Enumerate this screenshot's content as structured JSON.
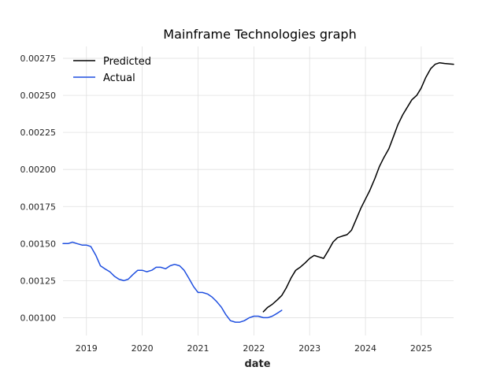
{
  "chart_data": {
    "type": "line",
    "title": "Mainframe Technologies graph",
    "xlabel": "date",
    "ylabel": "",
    "xlim": [
      2018.58,
      2025.58
    ],
    "ylim": [
      0.00088,
      0.00283
    ],
    "x_ticks": [
      2019,
      2020,
      2021,
      2022,
      2023,
      2024,
      2025
    ],
    "x_tick_labels": [
      "2019",
      "2020",
      "2021",
      "2022",
      "2023",
      "2024",
      "2025"
    ],
    "y_ticks": [
      0.001,
      0.00125,
      0.0015,
      0.00175,
      0.002,
      0.00225,
      0.0025,
      0.00275
    ],
    "y_tick_labels": [
      "0.00100",
      "0.00125",
      "0.00150",
      "0.00175",
      "0.00200",
      "0.00225",
      "0.00250",
      "0.00275"
    ],
    "grid": true,
    "legend_position": "top-left",
    "series": [
      {
        "name": "Predicted",
        "color": "#000000",
        "points": [
          [
            2022.17,
            0.00104
          ],
          [
            2022.25,
            0.00107
          ],
          [
            2022.33,
            0.00109
          ],
          [
            2022.42,
            0.00112
          ],
          [
            2022.5,
            0.00115
          ],
          [
            2022.58,
            0.0012
          ],
          [
            2022.67,
            0.00127
          ],
          [
            2022.75,
            0.00132
          ],
          [
            2022.83,
            0.00134
          ],
          [
            2022.92,
            0.00137
          ],
          [
            2023.0,
            0.0014
          ],
          [
            2023.08,
            0.00142
          ],
          [
            2023.17,
            0.00141
          ],
          [
            2023.25,
            0.0014
          ],
          [
            2023.33,
            0.00145
          ],
          [
            2023.42,
            0.00151
          ],
          [
            2023.5,
            0.00154
          ],
          [
            2023.58,
            0.00155
          ],
          [
            2023.67,
            0.00156
          ],
          [
            2023.75,
            0.00159
          ],
          [
            2023.83,
            0.00166
          ],
          [
            2023.92,
            0.00174
          ],
          [
            2024.0,
            0.0018
          ],
          [
            2024.08,
            0.00186
          ],
          [
            2024.17,
            0.00194
          ],
          [
            2024.25,
            0.00202
          ],
          [
            2024.33,
            0.00208
          ],
          [
            2024.42,
            0.00214
          ],
          [
            2024.5,
            0.00222
          ],
          [
            2024.58,
            0.0023
          ],
          [
            2024.67,
            0.00237
          ],
          [
            2024.75,
            0.00242
          ],
          [
            2024.83,
            0.00247
          ],
          [
            2024.92,
            0.0025
          ],
          [
            2025.0,
            0.00255
          ],
          [
            2025.08,
            0.00262
          ],
          [
            2025.17,
            0.00268
          ],
          [
            2025.25,
            0.00271
          ],
          [
            2025.33,
            0.00272
          ],
          [
            2025.42,
            0.002715
          ],
          [
            2025.58,
            0.00271
          ]
        ]
      },
      {
        "name": "Actual",
        "color": "#1f4fe0",
        "points": [
          [
            2018.58,
            0.0015
          ],
          [
            2018.67,
            0.0015
          ],
          [
            2018.75,
            0.00151
          ],
          [
            2018.83,
            0.0015
          ],
          [
            2018.92,
            0.00149
          ],
          [
            2019.0,
            0.00149
          ],
          [
            2019.08,
            0.00148
          ],
          [
            2019.17,
            0.00142
          ],
          [
            2019.25,
            0.00135
          ],
          [
            2019.33,
            0.00133
          ],
          [
            2019.42,
            0.00131
          ],
          [
            2019.5,
            0.00128
          ],
          [
            2019.58,
            0.00126
          ],
          [
            2019.67,
            0.00125
          ],
          [
            2019.75,
            0.00126
          ],
          [
            2019.83,
            0.00129
          ],
          [
            2019.92,
            0.00132
          ],
          [
            2020.0,
            0.00132
          ],
          [
            2020.08,
            0.00131
          ],
          [
            2020.17,
            0.00132
          ],
          [
            2020.25,
            0.00134
          ],
          [
            2020.33,
            0.00134
          ],
          [
            2020.42,
            0.00133
          ],
          [
            2020.5,
            0.00135
          ],
          [
            2020.58,
            0.00136
          ],
          [
            2020.67,
            0.00135
          ],
          [
            2020.75,
            0.00132
          ],
          [
            2020.83,
            0.00127
          ],
          [
            2020.92,
            0.00121
          ],
          [
            2021.0,
            0.00117
          ],
          [
            2021.08,
            0.00117
          ],
          [
            2021.17,
            0.00116
          ],
          [
            2021.25,
            0.00114
          ],
          [
            2021.33,
            0.00111
          ],
          [
            2021.42,
            0.00107
          ],
          [
            2021.5,
            0.00102
          ],
          [
            2021.58,
            0.00098
          ],
          [
            2021.67,
            0.00097
          ],
          [
            2021.75,
            0.00097
          ],
          [
            2021.83,
            0.00098
          ],
          [
            2021.92,
            0.001
          ],
          [
            2022.0,
            0.00101
          ],
          [
            2022.08,
            0.00101
          ],
          [
            2022.17,
            0.001
          ],
          [
            2022.25,
            0.001
          ],
          [
            2022.33,
            0.00101
          ],
          [
            2022.42,
            0.00103
          ],
          [
            2022.5,
            0.00105
          ]
        ]
      }
    ]
  }
}
